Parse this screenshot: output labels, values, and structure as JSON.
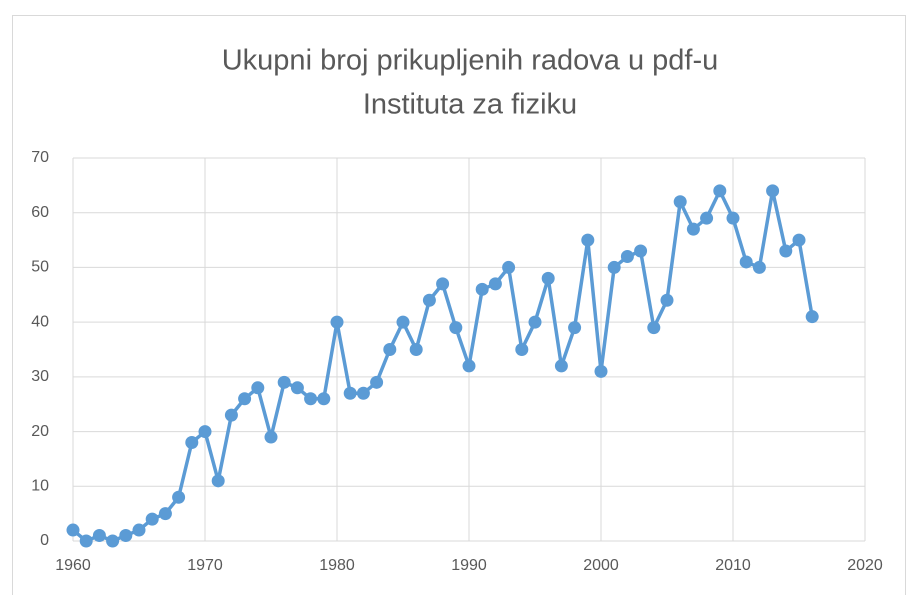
{
  "chart_data": {
    "type": "line",
    "title": [
      "Ukupni broj prikupljenih radova u pdf-u",
      "Instituta za fiziku"
    ],
    "x": [
      1960,
      1961,
      1962,
      1963,
      1964,
      1965,
      1966,
      1967,
      1968,
      1969,
      1970,
      1971,
      1972,
      1973,
      1974,
      1975,
      1976,
      1977,
      1978,
      1979,
      1980,
      1981,
      1982,
      1983,
      1984,
      1985,
      1986,
      1987,
      1988,
      1989,
      1990,
      1991,
      1992,
      1993,
      1994,
      1995,
      1996,
      1997,
      1998,
      1999,
      2000,
      2001,
      2002,
      2003,
      2004,
      2005,
      2006,
      2007,
      2008,
      2009,
      2010,
      2011,
      2012,
      2013,
      2014,
      2015,
      2016
    ],
    "values": [
      2,
      0,
      1,
      0,
      1,
      2,
      4,
      5,
      8,
      18,
      20,
      11,
      23,
      26,
      28,
      19,
      29,
      28,
      26,
      26,
      40,
      27,
      27,
      29,
      35,
      40,
      35,
      44,
      47,
      39,
      32,
      46,
      47,
      50,
      35,
      40,
      48,
      32,
      39,
      55,
      31,
      50,
      52,
      53,
      39,
      44,
      62,
      57,
      59,
      64,
      59,
      51,
      50,
      64,
      53,
      55,
      41
    ],
    "color": "#5b9bd5",
    "xlim": [
      1960,
      2020
    ],
    "xticks": [
      1960,
      1970,
      1980,
      1990,
      2000,
      2010,
      2020
    ],
    "ylim": [
      0,
      70
    ],
    "yticks": [
      0,
      10,
      20,
      30,
      40,
      50,
      60,
      70
    ],
    "grid": true
  }
}
